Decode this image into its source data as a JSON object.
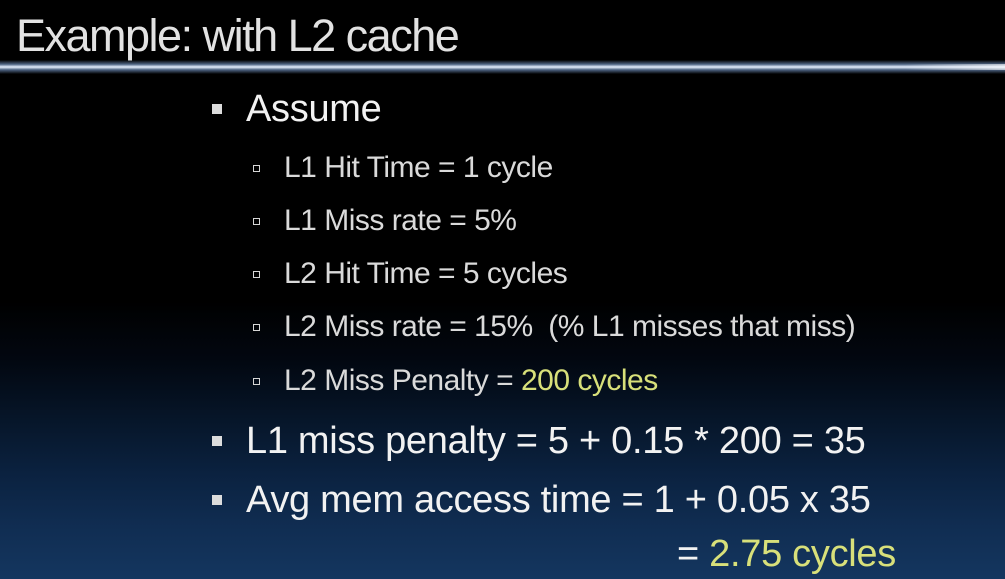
{
  "title": "Example: with L2 cache",
  "assume": {
    "heading": "Assume",
    "items": [
      {
        "text": "L1 Hit Time = 1 cycle",
        "highlight": ""
      },
      {
        "text": "L1 Miss rate = 5%",
        "highlight": ""
      },
      {
        "text": "L2 Hit Time = 5 cycles",
        "highlight": ""
      },
      {
        "text": "L2 Miss rate = 15%  (% L1 misses that miss)",
        "highlight": ""
      },
      {
        "text": "L2 Miss Penalty = ",
        "highlight": "200 cycles"
      }
    ]
  },
  "l1_penalty": "L1 miss penalty = 5 + 0.15 * 200 = 35",
  "avg_access": {
    "line1": "Avg mem access time = 1 + 0.05 x 35",
    "line2_prefix": "= ",
    "line2_result": "2.75 cycles"
  },
  "colors": {
    "accent": "#d8e07a",
    "text": "#f2f2f2",
    "sub_text": "#dadada"
  }
}
